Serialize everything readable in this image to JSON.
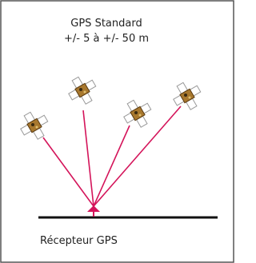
{
  "title": {
    "line1": "GPS Standard",
    "line2": "+/- 5 à +/- 50 m"
  },
  "receiver": {
    "label": "Récepteur GPS"
  }
}
